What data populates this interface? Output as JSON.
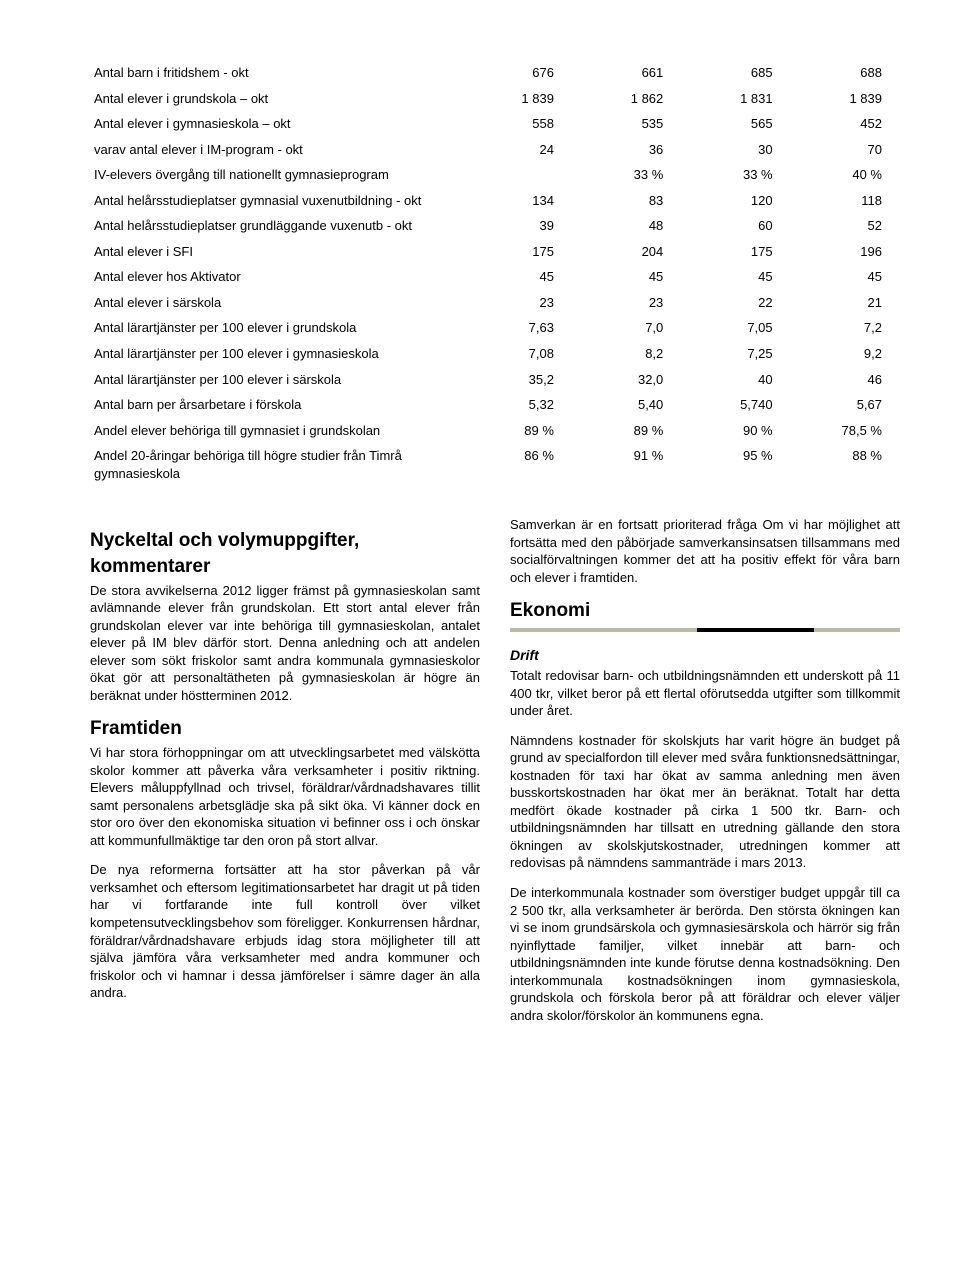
{
  "table": {
    "rows": [
      {
        "label": "Antal barn i fritidshem - okt",
        "c1": "676",
        "c2": "661",
        "c3": "685",
        "c4": "688"
      },
      {
        "label": "Antal elever i grundskola – okt",
        "c1": "1 839",
        "c2": "1 862",
        "c3": "1 831",
        "c4": "1 839"
      },
      {
        "label": "Antal elever i gymnasieskola – okt",
        "c1": "558",
        "c2": "535",
        "c3": "565",
        "c4": "452"
      },
      {
        "label": "varav antal elever i IM-program - okt",
        "c1": "24",
        "c2": "36",
        "c3": "30",
        "c4": "70"
      },
      {
        "label": "IV-elevers övergång till nationellt gymnasieprogram",
        "c1": "",
        "c2": "33 %",
        "c3": "33 %",
        "c4": "40 %"
      },
      {
        "label": "Antal helårsstudieplatser gymnasial vuxenutbildning - okt",
        "c1": "134",
        "c2": "83",
        "c3": "120",
        "c4": "118"
      },
      {
        "label": "Antal helårsstudieplatser grundläggande vuxenutb - okt",
        "c1": "39",
        "c2": "48",
        "c3": "60",
        "c4": "52"
      },
      {
        "label": "Antal elever i SFI",
        "c1": "175",
        "c2": "204",
        "c3": "175",
        "c4": "196"
      },
      {
        "label": "Antal elever hos Aktivator",
        "c1": "45",
        "c2": "45",
        "c3": "45",
        "c4": "45"
      },
      {
        "label": "Antal elever i särskola",
        "c1": "23",
        "c2": "23",
        "c3": "22",
        "c4": "21"
      },
      {
        "label": "Antal lärartjänster per 100 elever i grundskola",
        "c1": "7,63",
        "c2": "7,0",
        "c3": "7,05",
        "c4": "7,2"
      },
      {
        "label": "Antal lärartjänster per 100 elever i gymnasieskola",
        "c1": "7,08",
        "c2": "8,2",
        "c3": "7,25",
        "c4": "9,2"
      },
      {
        "label": "Antal lärartjänster per 100 elever i särskola",
        "c1": "35,2",
        "c2": "32,0",
        "c3": "40",
        "c4": "46"
      },
      {
        "label": "Antal barn per årsarbetare i förskola",
        "c1": "5,32",
        "c2": "5,40",
        "c3": "5,740",
        "c4": "5,67"
      },
      {
        "label": "Andel elever behöriga till gymnasiet i grundskolan",
        "c1": "89 %",
        "c2": "89 %",
        "c3": "90 %",
        "c4": "78,5 %"
      },
      {
        "label": "Andel 20-åringar behöriga till högre studier från Timrå gymnasieskola",
        "c1": "86 %",
        "c2": "91 %",
        "c3": "95 %",
        "c4": "88 %"
      }
    ]
  },
  "left": {
    "h1": "Nyckeltal och volymuppgifter, kommentarer",
    "p1": "De stora avvikelserna 2012 ligger främst på gymnasieskolan samt avlämnande elever från grundskolan. Ett stort antal elever från grundskolan elever var inte behöriga till gymnasieskolan, antalet elever på IM blev därför stort. Denna anledning och att andelen elever som sökt friskolor samt andra kommunala gymnasieskolor ökat gör att personaltätheten på gymnasieskolan är högre än beräknat under höstterminen 2012.",
    "h2": "Framtiden",
    "p2": "Vi har stora förhoppningar om att utvecklingsarbetet med välskötta skolor kommer att påverka våra verksamheter i positiv riktning. Elevers måluppfyllnad och trivsel, föräldrar/vårdnadshavares tillit samt personalens arbetsglädje ska på sikt öka. Vi känner dock en stor oro över den ekonomiska situation vi befinner oss i och önskar att kommunfullmäktige tar den oron på stort allvar.",
    "p3": "De nya reformerna fortsätter att ha stor påverkan på vår verksamhet och eftersom legitimationsarbetet har dragit ut på tiden har vi fortfarande inte full kontroll över vilket kompetensutvecklingsbehov som föreligger. Konkurrensen hårdnar, föräldrar/vårdnadshavare erbjuds idag stora möjligheter till att själva jämföra våra verksamheter med andra kommuner och friskolor och vi hamnar i dessa jämförelser i sämre dager än alla andra."
  },
  "right": {
    "p0": "Samverkan är en fortsatt prioriterad fråga Om vi har möjlighet att fortsätta med den påbörjade samverkansinsatsen tillsammans med socialförvaltningen kommer det att ha positiv effekt för våra barn och elever i framtiden.",
    "h1": "Ekonomi",
    "h2": "Drift",
    "p1": "Totalt redovisar barn- och utbildningsnämnden ett underskott på 11 400 tkr, vilket beror på ett flertal oförutsedda utgifter som tillkommit under året.",
    "p2": "Nämndens kostnader för skolskjuts har varit högre än budget på grund av specialfordon till elever med svåra funktionsnedsättningar, kostnaden för taxi har ökat av samma anledning men även busskortskostnaden har ökat mer än beräknat. Totalt har detta medfört ökade kostnader på cirka 1 500 tkr. Barn- och utbildningsnämnden har tillsatt en utredning gällande den stora ökningen av skolskjutskostnader, utredningen kommer att redovisas på nämndens sammanträde i mars 2013.",
    "p3": "De interkommunala kostnader som överstiger budget uppgår till ca 2 500 tkr, alla verksamheter är berörda. Den största ökningen kan vi se inom grundsärskola och gymnasiesärskola och härrör sig från nyinflyttade familjer, vilket innebär att barn- och utbildningsnämnden inte kunde förutse denna kostnadsökning. Den interkommunala kostnadsökningen inom gymnasieskola, grundskola och förskola beror på att föräldrar och elever väljer andra skolor/förskolor än kommunens egna."
  }
}
